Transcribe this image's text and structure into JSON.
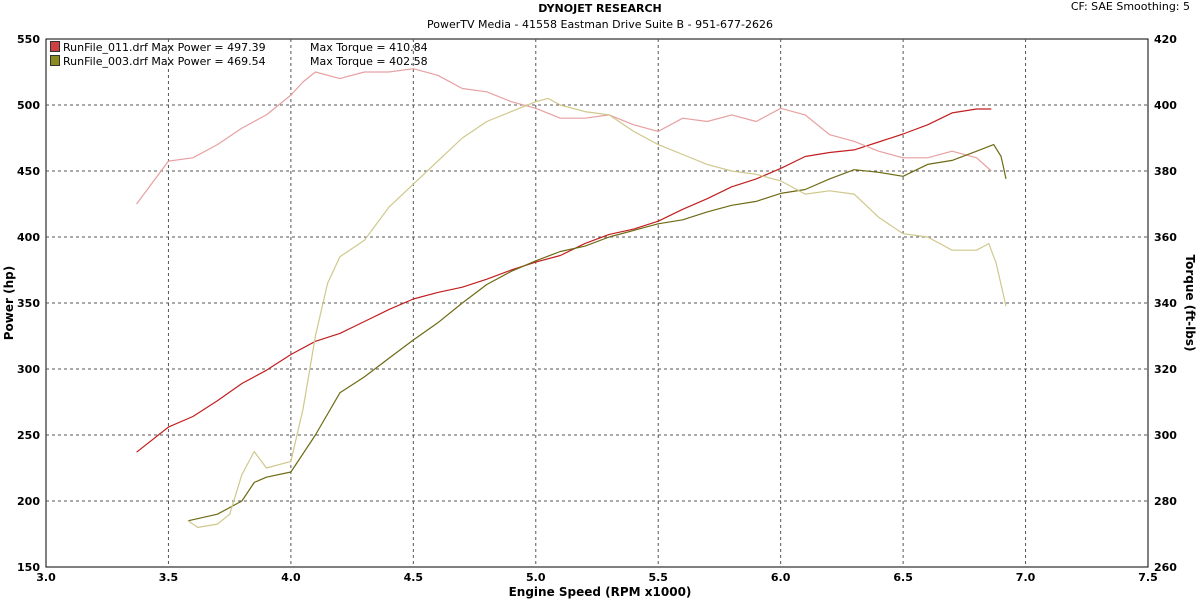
{
  "header": {
    "title": "DYNOJET RESEARCH",
    "subtitle": "PowerTV Media - 41558 Eastman Drive Suite B - 951-677-2626",
    "corner": "CF: SAE  Smoothing: 5"
  },
  "legend": [
    {
      "file": "RunFile_011.drf",
      "power": "Max Power = 497.39",
      "torque": "Max Torque = 410.84",
      "color": "#d04040"
    },
    {
      "file": "RunFile_003.drf",
      "power": "Max Power = 469.54",
      "torque": "Max Torque = 402.58",
      "color": "#8a8a20"
    }
  ],
  "chart_data": {
    "type": "line",
    "xlabel": "Engine Speed (RPM x1000)",
    "ylabel": "Power (hp)",
    "y2label": "Torque (ft-lbs)",
    "xlim": [
      3.0,
      7.5
    ],
    "ylim": [
      150,
      550
    ],
    "y2lim": [
      260,
      420
    ],
    "xticks": [
      "3.0",
      "3.5",
      "4.0",
      "4.5",
      "5.0",
      "5.5",
      "6.0",
      "6.5",
      "7.0",
      "7.5"
    ],
    "yticks": [
      "150",
      "200",
      "250",
      "300",
      "350",
      "400",
      "450",
      "500",
      "550"
    ],
    "y2ticks": [
      "260",
      "280",
      "300",
      "320",
      "340",
      "360",
      "380",
      "400",
      "420"
    ],
    "grid": true,
    "series": [
      {
        "name": "RunFile_011.drf",
        "quantity": "power",
        "axis": "left",
        "color": "#c21f1f",
        "x": [
          3.37,
          3.5,
          3.6,
          3.7,
          3.8,
          3.9,
          4.0,
          4.1,
          4.2,
          4.3,
          4.4,
          4.5,
          4.6,
          4.7,
          4.8,
          4.9,
          5.0,
          5.1,
          5.2,
          5.3,
          5.4,
          5.5,
          5.6,
          5.7,
          5.8,
          5.9,
          6.0,
          6.1,
          6.2,
          6.3,
          6.4,
          6.5,
          6.6,
          6.7,
          6.8,
          6.86
        ],
        "y": [
          237,
          256,
          264,
          276,
          289,
          299,
          311,
          321,
          327,
          336,
          345,
          353,
          358,
          362,
          368,
          375,
          381,
          386,
          395,
          402,
          406,
          412,
          421,
          429,
          438,
          444,
          452,
          461,
          464,
          466,
          472,
          478,
          485,
          494,
          497,
          497
        ]
      },
      {
        "name": "RunFile_011.drf",
        "quantity": "torque",
        "axis": "right",
        "color": "#e8a0a0",
        "x": [
          3.37,
          3.5,
          3.6,
          3.7,
          3.8,
          3.9,
          4.0,
          4.05,
          4.1,
          4.2,
          4.3,
          4.4,
          4.5,
          4.6,
          4.7,
          4.8,
          4.9,
          5.0,
          5.1,
          5.2,
          5.3,
          5.4,
          5.5,
          5.6,
          5.7,
          5.8,
          5.9,
          6.0,
          6.1,
          6.2,
          6.3,
          6.4,
          6.5,
          6.6,
          6.7,
          6.8,
          6.86
        ],
        "y": [
          370,
          383,
          384,
          388,
          393,
          397,
          403,
          407,
          410,
          408,
          410,
          410,
          411,
          409,
          405,
          404,
          401,
          399,
          396,
          396,
          397,
          394,
          392,
          396,
          395,
          397,
          395,
          399,
          397,
          391,
          389,
          386,
          384,
          384,
          386,
          384,
          380
        ]
      },
      {
        "name": "RunFile_003.drf",
        "quantity": "power",
        "axis": "left",
        "color": "#6e6a14",
        "x": [
          3.58,
          3.7,
          3.8,
          3.85,
          3.9,
          4.0,
          4.1,
          4.2,
          4.3,
          4.4,
          4.5,
          4.6,
          4.7,
          4.8,
          4.9,
          5.0,
          5.1,
          5.2,
          5.3,
          5.4,
          5.5,
          5.6,
          5.7,
          5.8,
          5.9,
          6.0,
          6.1,
          6.2,
          6.3,
          6.4,
          6.5,
          6.6,
          6.7,
          6.8,
          6.87,
          6.9,
          6.92
        ],
        "y": [
          185,
          190,
          200,
          214,
          218,
          222,
          250,
          282,
          294,
          308,
          322,
          335,
          350,
          364,
          374,
          382,
          389,
          393,
          400,
          405,
          410,
          413,
          419,
          424,
          427,
          433,
          436,
          444,
          451,
          449,
          446,
          455,
          458,
          465,
          470,
          461,
          444
        ]
      },
      {
        "name": "RunFile_003.drf",
        "quantity": "torque",
        "axis": "right",
        "color": "#cfc88c",
        "x": [
          3.58,
          3.62,
          3.7,
          3.75,
          3.8,
          3.85,
          3.9,
          4.0,
          4.05,
          4.1,
          4.15,
          4.2,
          4.3,
          4.4,
          4.5,
          4.6,
          4.7,
          4.8,
          4.9,
          5.0,
          5.05,
          5.1,
          5.2,
          5.3,
          5.4,
          5.5,
          5.6,
          5.7,
          5.8,
          5.9,
          6.0,
          6.1,
          6.2,
          6.3,
          6.4,
          6.5,
          6.6,
          6.7,
          6.8,
          6.85,
          6.88,
          6.92
        ],
        "y": [
          274,
          272,
          273,
          276,
          288,
          295,
          290,
          292,
          308,
          330,
          346,
          354,
          359,
          369,
          376,
          383,
          390,
          395,
          398,
          401,
          402,
          400,
          398,
          397,
          392,
          388,
          385,
          382,
          380,
          379,
          377,
          373,
          374,
          373,
          366,
          361,
          360,
          356,
          356,
          358,
          352,
          339
        ]
      }
    ]
  }
}
